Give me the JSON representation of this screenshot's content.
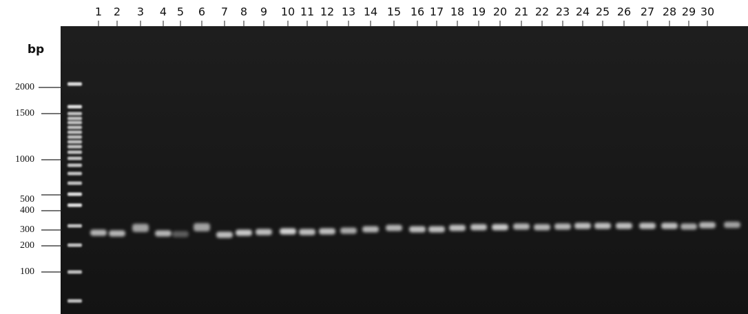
{
  "axis_label": "bp",
  "lanes": [
    "1",
    "2",
    "3",
    "4",
    "5",
    "6",
    "7",
    "8",
    "9",
    "10",
    "11",
    "12",
    "13",
    "14",
    "15",
    "16",
    "17",
    "18",
    "19",
    "20",
    "21",
    "22",
    "23",
    "24",
    "25",
    "26",
    "27",
    "28",
    "29",
    "30"
  ],
  "markers": [
    "2000",
    "1500",
    "1000",
    "500",
    "400",
    "300",
    "200",
    "100"
  ]
}
